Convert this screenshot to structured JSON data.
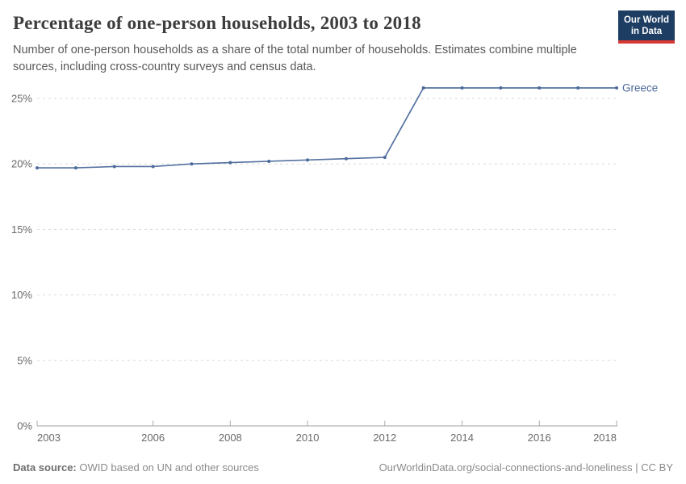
{
  "header": {
    "title": "Percentage of one-person households, 2003 to 2018",
    "subtitle": "Number of one-person households as a share of the total number of households. Estimates combine multiple sources, including cross-country surveys and census data.",
    "logo": {
      "line1": "Our World",
      "line2": "in Data"
    }
  },
  "chart_data": {
    "type": "line",
    "title": "Percentage of one-person households, 2003 to 2018",
    "x": [
      2003,
      2004,
      2005,
      2006,
      2007,
      2008,
      2009,
      2010,
      2011,
      2012,
      2013,
      2014,
      2015,
      2016,
      2017,
      2018
    ],
    "series": [
      {
        "name": "Greece",
        "color": "#4c6a9c",
        "values": [
          19.7,
          19.7,
          19.8,
          19.8,
          20.0,
          20.1,
          20.2,
          20.3,
          20.4,
          20.5,
          25.8,
          25.8,
          25.8,
          25.8,
          25.8,
          25.8
        ]
      }
    ],
    "x_ticks": [
      2003,
      2006,
      2008,
      2010,
      2012,
      2014,
      2016,
      2018
    ],
    "y_ticks": [
      0,
      5,
      10,
      15,
      20,
      25
    ],
    "y_tick_suffix": "%",
    "ylim": [
      0,
      25
    ],
    "xlim": [
      2003,
      2018
    ],
    "grid": "dashed-horizontal",
    "legend": "end-of-line-label",
    "colors": {
      "line": "#4c6a9c",
      "gridline": "#d9d9d9",
      "axis": "#a0a0a0",
      "tick": "#ababab",
      "tick_label": "#696969"
    }
  },
  "footer": {
    "source_label": "Data source:",
    "source_text": " OWID based on UN and other sources",
    "link_text": "OurWorldinData.org/social-connections-and-loneliness",
    "separator": " | ",
    "license": "CC BY"
  }
}
